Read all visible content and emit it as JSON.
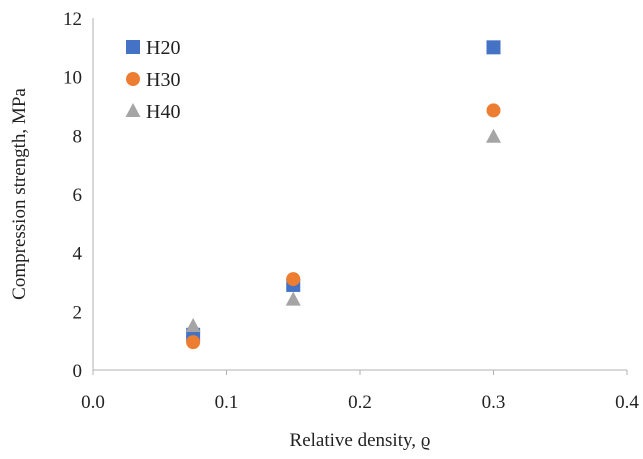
{
  "chart_data": {
    "type": "scatter",
    "title": "",
    "xlabel": "Relative density, ϱ",
    "ylabel": "Compression strength, MPa",
    "xlim": [
      0,
      0.4
    ],
    "ylim": [
      0,
      12
    ],
    "xticks": [
      0.0,
      0.1,
      0.2,
      0.3,
      0.4
    ],
    "xtick_labels": [
      "0.0",
      "0.1",
      "0.2",
      "0.3",
      "0.4"
    ],
    "yticks": [
      0,
      2,
      4,
      6,
      8,
      10,
      12
    ],
    "ytick_labels": [
      "0",
      "2",
      "4",
      "6",
      "8",
      "10",
      "12"
    ],
    "grid": false,
    "legend": "top-left",
    "series": [
      {
        "name": "H20",
        "marker": "square",
        "color": "#4472C4",
        "x": [
          0.075,
          0.15,
          0.3
        ],
        "y": [
          1.2,
          2.9,
          11.0
        ]
      },
      {
        "name": "H30",
        "marker": "circle",
        "color": "#ED7D31",
        "x": [
          0.075,
          0.15,
          0.3
        ],
        "y": [
          0.95,
          3.1,
          8.85
        ]
      },
      {
        "name": "H40",
        "marker": "triangle",
        "color": "#A5A5A5",
        "x": [
          0.075,
          0.15,
          0.3
        ],
        "y": [
          1.5,
          2.4,
          7.95
        ]
      }
    ]
  }
}
